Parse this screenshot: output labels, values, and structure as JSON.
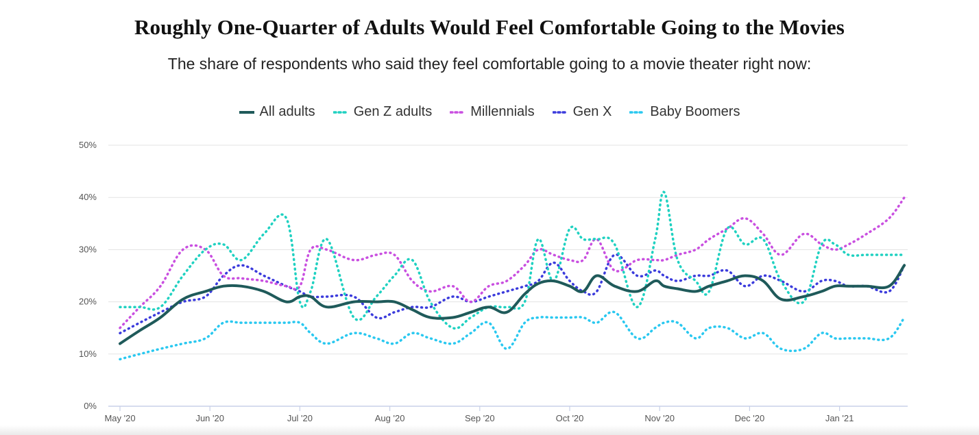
{
  "chart_data": {
    "type": "line",
    "title": "Roughly One-Quarter of Adults Would Feel Comfortable Going to the Movies",
    "subtitle": "The share of respondents who said they feel comfortable going to a movie theater right now:",
    "xlabel": "",
    "ylabel": "",
    "ylim": [
      0,
      50
    ],
    "y_ticks": [
      "0%",
      "10%",
      "20%",
      "30%",
      "40%",
      "50%"
    ],
    "y_tick_values": [
      0,
      10,
      20,
      30,
      40,
      50
    ],
    "x_ticks": [
      "May '20",
      "Jun '20",
      "Jul '20",
      "Aug '20",
      "Sep '20",
      "Oct '20",
      "Nov '20",
      "Dec '20",
      "Jan '21"
    ],
    "x_tick_values": [
      0,
      1,
      2,
      3,
      4,
      5,
      6,
      7,
      8
    ],
    "xlim": [
      -0.02,
      8.8
    ],
    "grid": true,
    "legend_position": "top-center",
    "x": [
      0,
      0.22,
      0.45,
      0.7,
      0.95,
      1.15,
      1.35,
      1.6,
      1.85,
      2.0,
      2.12,
      2.3,
      2.6,
      2.85,
      3.05,
      3.25,
      3.45,
      3.7,
      3.9,
      4.1,
      4.3,
      4.5,
      4.65,
      4.82,
      5.0,
      5.15,
      5.3,
      5.5,
      5.75,
      5.95,
      6.05,
      6.2,
      6.4,
      6.55,
      6.75,
      6.95,
      7.15,
      7.35,
      7.6,
      7.8,
      7.95,
      8.1,
      8.3,
      8.55,
      8.72
    ],
    "series": [
      {
        "name": "All adults",
        "color": "#1f5a5a",
        "style": "solid",
        "values": [
          12,
          14.5,
          17,
          20.5,
          22,
          23,
          23,
          22,
          20,
          21,
          21,
          19,
          20,
          20,
          20,
          18.5,
          17,
          17,
          18,
          19,
          18,
          21.5,
          23.5,
          24,
          23,
          22,
          25,
          23,
          22,
          24,
          23,
          22.5,
          22,
          23,
          24,
          25,
          24,
          20.5,
          21,
          22,
          23,
          23,
          23,
          23,
          27
        ]
      },
      {
        "name": "Gen Z adults",
        "color": "#1fd1c1",
        "style": "dotted",
        "values": [
          19,
          19,
          19,
          25,
          30,
          31,
          28,
          33,
          36,
          20,
          22,
          32,
          17,
          21,
          25,
          28,
          20,
          15,
          17,
          19,
          19,
          20,
          32,
          24,
          34,
          32,
          32,
          31,
          19,
          32,
          41,
          28,
          24,
          22,
          34,
          31,
          32,
          24,
          20,
          31,
          31,
          29,
          29,
          29,
          29
        ]
      },
      {
        "name": "Millennials",
        "color": "#c94fe0",
        "style": "dotted",
        "values": [
          15,
          19,
          23,
          30,
          30,
          25,
          24.5,
          24,
          23,
          23,
          30,
          30,
          28,
          29,
          29,
          24,
          22,
          23,
          20,
          23,
          24,
          27,
          30,
          29,
          28,
          28,
          32,
          26,
          28,
          28,
          28,
          29,
          30,
          32,
          34,
          36,
          33,
          29,
          33,
          31,
          30,
          31,
          33,
          36,
          40
        ]
      },
      {
        "name": "Gen X",
        "color": "#3b3bdc",
        "style": "dotted",
        "values": [
          14,
          16,
          18,
          20,
          21,
          25,
          27,
          25,
          23,
          22,
          21,
          21,
          21,
          17,
          18,
          19,
          19,
          21,
          20,
          21,
          22,
          23,
          24,
          27.5,
          24,
          22,
          22,
          29,
          25,
          26,
          25,
          24,
          25,
          25,
          26,
          23,
          25,
          24,
          22,
          24,
          24,
          23,
          23,
          22,
          27
        ]
      },
      {
        "name": "Baby Boomers",
        "color": "#29c8f0",
        "style": "dotted",
        "values": [
          9,
          10,
          11,
          12,
          13,
          16,
          16,
          16,
          16,
          16,
          14,
          12,
          14,
          13,
          12,
          14,
          13,
          12,
          14,
          16,
          11,
          16,
          17,
          17,
          17,
          17,
          16,
          18,
          13,
          15,
          16,
          16,
          13,
          15,
          15,
          13,
          14,
          11,
          11,
          14,
          13,
          13,
          13,
          13,
          17
        ]
      }
    ]
  }
}
